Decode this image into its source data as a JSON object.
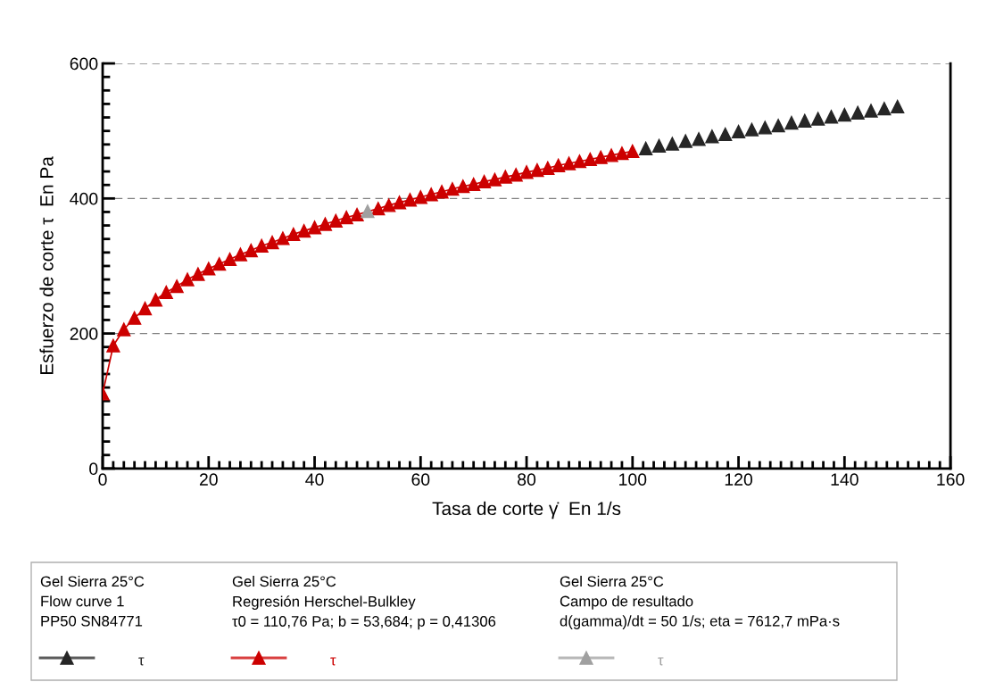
{
  "chart_data": {
    "type": "scatter",
    "xlabel": "Tasa de corte γ̇  En 1/s",
    "ylabel": "Esfuerzo de corte τ  En Pa",
    "xlim": [
      0,
      160
    ],
    "xticks": [
      0,
      20,
      40,
      60,
      80,
      100,
      120,
      140,
      160
    ],
    "ylim": [
      0,
      600
    ],
    "yticks": [
      0,
      200,
      400,
      600
    ],
    "grid": "y",
    "legend": "bottom",
    "marker": "triangle",
    "annotations": [
      "Gel Sierra 25°C\nFlow curve 1\nPP50 SN84771",
      "Gel Sierra 25°C\nRegresión Herschel-Bulkley\nτ0 = 110,76 Pa; b = 53,684; p = 0,41306",
      "Gel Sierra 25°C\nCampo de resultado\nd(gamma)/dt = 50 1/s; eta = 7612,7 mPa·s"
    ],
    "series": [
      {
        "name": "τ",
        "color": "#262626",
        "x": [
          102.5,
          105,
          107.5,
          110,
          112.5,
          115,
          117.5,
          120,
          122.5,
          125,
          127.5,
          130,
          132.5,
          135,
          137.5,
          140,
          142.5,
          145,
          147.5,
          150
        ],
        "values": [
          474,
          478,
          481,
          485,
          488,
          492,
          495,
          499,
          502,
          505,
          508,
          512,
          515,
          518,
          521,
          524,
          527,
          530,
          533,
          536
        ]
      },
      {
        "name": "τ",
        "type": "line",
        "color": "#cc0000",
        "x": [
          0,
          2,
          4,
          6,
          8,
          10,
          12,
          14,
          16,
          18,
          20,
          22,
          24,
          26,
          28,
          30,
          32,
          34,
          36,
          38,
          40,
          42,
          44,
          46,
          48,
          52,
          54,
          56,
          58,
          60,
          62,
          64,
          66,
          68,
          70,
          72,
          74,
          76,
          78,
          80,
          82,
          84,
          86,
          88,
          90,
          92,
          94,
          96,
          98,
          100
        ],
        "values": [
          111,
          182,
          206,
          223,
          237,
          250,
          261,
          270,
          280,
          288,
          296,
          303,
          310,
          317,
          323,
          330,
          335,
          341,
          347,
          352,
          357,
          362,
          367,
          372,
          376,
          385,
          390,
          394,
          398,
          402,
          406,
          410,
          414,
          418,
          421,
          425,
          428,
          432,
          435,
          439,
          442,
          445,
          449,
          452,
          455,
          458,
          461,
          464,
          467,
          470
        ]
      },
      {
        "name": "τ",
        "color": "#a0a0a0",
        "x": [
          50
        ],
        "values": [
          381
        ]
      }
    ]
  }
}
